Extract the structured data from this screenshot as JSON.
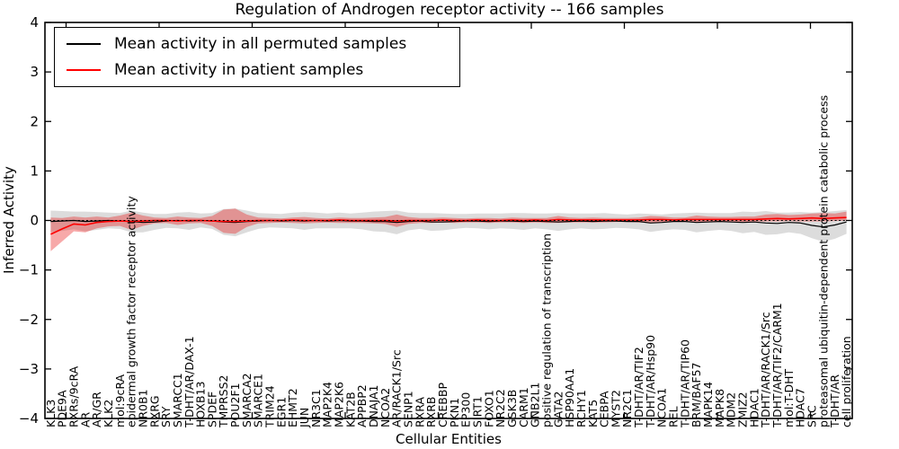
{
  "chart_data": {
    "type": "line",
    "title": "Regulation of Androgen receptor activity -- 166 samples",
    "xlabel": "Cellular Entities",
    "ylabel": "Inferred Activity",
    "ylim": [
      -4,
      4
    ],
    "yticks": [
      {
        "value": 4,
        "label": "4"
      },
      {
        "value": 3,
        "label": "3"
      },
      {
        "value": 2,
        "label": "2"
      },
      {
        "value": 1,
        "label": "1"
      },
      {
        "value": 0,
        "label": "0"
      },
      {
        "value": -1,
        "label": "−1"
      },
      {
        "value": -2,
        "label": "−2"
      },
      {
        "value": -3,
        "label": "−3"
      },
      {
        "value": -4,
        "label": "−4"
      }
    ],
    "grid": false,
    "legend_position": "upper left",
    "categories": [
      "KLK3",
      "PDE9A",
      "RXRs/9cRA",
      "AR",
      "AR/GR",
      "KLK2",
      "mol:9cRA",
      "epidermal growth factor receptor activity",
      "NR0B1",
      "RXRG",
      "SRY",
      "SMARCC1",
      "T-DHT/AR/DAX-1",
      "HOXB13",
      "SPDEF",
      "TMPRSS2",
      "POU2F1",
      "SMARCA2",
      "SMARCE1",
      "TRIM24",
      "EGR1",
      "EHMT2",
      "JUN",
      "NR3C1",
      "MAP2K4",
      "MAP2K6",
      "KAT2B",
      "APPBP2",
      "DNAJA1",
      "NCOA2",
      "AR/RACK1/Src",
      "SENP1",
      "RXRA",
      "RXRB",
      "CREBBP",
      "PKN1",
      "EP300",
      "SIRT1",
      "FOXO1",
      "NR2C2",
      "GSK3B",
      "CARM1",
      "GNB2L1",
      "positive regulation of transcription",
      "GATA2",
      "HSP90AA1",
      "RCHY1",
      "KAT5",
      "CEBPA",
      "MYST2",
      "NR2C1",
      "T-DHT/AR/TIF2",
      "T-DHT/AR/Hsp90",
      "NCOA1",
      "REL",
      "T-DHT/AR/TIP60",
      "BRM/BAF57",
      "MAPK14",
      "MAPK8",
      "MDM2",
      "ZMIZ2",
      "HDAC1",
      "T-DHT/AR/RACK1/Src",
      "T-DHT/AR/TIF2/CARM1",
      "mol:T-DHT",
      "HDAC7",
      "SRC",
      "proteasomal ubiquitin-dependent protein catabolic process",
      "T-DHT/AR",
      "cell proliferation"
    ],
    "series": [
      {
        "name": "Mean activity in all permuted samples",
        "color": "#000000",
        "line_style": "solid",
        "band_color": "rgba(128,128,128,0.28)",
        "values": [
          -0.02,
          -0.01,
          0,
          -0.02,
          -0.01,
          0,
          -0.01,
          -0.02,
          -0.04,
          -0.03,
          -0.01,
          0,
          -0.01,
          0,
          -0.01,
          -0.03,
          -0.04,
          -0.02,
          -0.01,
          0,
          -0.01,
          0,
          -0.01,
          0,
          -0.01,
          0,
          -0.01,
          -0.01,
          -0.02,
          -0.02,
          -0.04,
          -0.02,
          -0.01,
          -0.03,
          -0.03,
          -0.02,
          -0.01,
          -0.01,
          -0.02,
          -0.01,
          -0.01,
          -0.02,
          -0.01,
          -0.02,
          -0.03,
          -0.02,
          -0.01,
          -0.02,
          -0.01,
          -0.01,
          -0.02,
          -0.02,
          -0.05,
          -0.04,
          -0.02,
          -0.02,
          -0.04,
          -0.03,
          -0.02,
          -0.03,
          -0.04,
          -0.03,
          -0.05,
          -0.06,
          -0.04,
          -0.05,
          -0.1,
          -0.13,
          -0.09,
          -0.03
        ],
        "band_upper": [
          0.2,
          0.19,
          0.18,
          0.18,
          0.17,
          0.16,
          0.15,
          0.2,
          0.16,
          0.13,
          0.13,
          0.16,
          0.17,
          0.14,
          0.15,
          0.23,
          0.24,
          0.2,
          0.15,
          0.14,
          0.13,
          0.16,
          0.17,
          0.16,
          0.14,
          0.16,
          0.14,
          0.16,
          0.18,
          0.19,
          0.2,
          0.16,
          0.15,
          0.15,
          0.14,
          0.13,
          0.13,
          0.14,
          0.14,
          0.14,
          0.15,
          0.15,
          0.14,
          0.14,
          0.15,
          0.14,
          0.14,
          0.14,
          0.15,
          0.13,
          0.12,
          0.14,
          0.13,
          0.12,
          0.14,
          0.15,
          0.16,
          0.15,
          0.15,
          0.15,
          0.18,
          0.17,
          0.19,
          0.16,
          0.16,
          0.17,
          0.16,
          0.17,
          0.19,
          0.21
        ],
        "band_lower": [
          -0.24,
          -0.21,
          -0.18,
          -0.22,
          -0.19,
          -0.16,
          -0.17,
          -0.24,
          -0.24,
          -0.19,
          -0.15,
          -0.16,
          -0.19,
          -0.14,
          -0.17,
          -0.29,
          -0.32,
          -0.24,
          -0.17,
          -0.14,
          -0.15,
          -0.16,
          -0.19,
          -0.16,
          -0.16,
          -0.16,
          -0.16,
          -0.18,
          -0.22,
          -0.23,
          -0.28,
          -0.2,
          -0.17,
          -0.21,
          -0.2,
          -0.17,
          -0.15,
          -0.16,
          -0.18,
          -0.16,
          -0.17,
          -0.19,
          -0.16,
          -0.18,
          -0.21,
          -0.18,
          -0.16,
          -0.18,
          -0.17,
          -0.15,
          -0.16,
          -0.18,
          -0.23,
          -0.2,
          -0.18,
          -0.19,
          -0.24,
          -0.21,
          -0.19,
          -0.21,
          -0.26,
          -0.23,
          -0.29,
          -0.28,
          -0.24,
          -0.27,
          -0.36,
          -0.43,
          -0.37,
          -0.27
        ]
      },
      {
        "name": "Mean activity in patient samples",
        "color": "#ff0000",
        "line_style": "solid",
        "band_color": "rgba(235,30,30,0.38)",
        "values": [
          -0.28,
          -0.17,
          -0.07,
          -0.09,
          -0.04,
          -0.02,
          -0.01,
          -0.02,
          -0.01,
          0,
          0,
          -0.01,
          0,
          0,
          -0.01,
          -0.02,
          -0.02,
          -0.01,
          0,
          0,
          0,
          0.01,
          0,
          0,
          0,
          0.01,
          0,
          0,
          0,
          0,
          -0.01,
          0,
          0,
          0,
          0.01,
          0,
          0,
          0.01,
          0,
          0,
          0.01,
          0,
          0.01,
          0,
          0.02,
          0.01,
          0.01,
          0.01,
          0.01,
          0.01,
          0.01,
          0.01,
          0.02,
          0.02,
          0.01,
          0.02,
          0.02,
          0.02,
          0.02,
          0.02,
          0.02,
          0.02,
          0.03,
          0.04,
          0.03,
          0.04,
          0.05,
          0.04,
          0.05,
          0.06
        ],
        "band_upper": [
          0.06,
          0.05,
          0.08,
          0.06,
          0.08,
          0.06,
          0.1,
          0.16,
          0.1,
          0.06,
          0.05,
          0.08,
          0.06,
          0.05,
          0.09,
          0.22,
          0.24,
          0.12,
          0.06,
          0.05,
          0.04,
          0.06,
          0.07,
          0.05,
          0.04,
          0.06,
          0.05,
          0.05,
          0.06,
          0.07,
          0.12,
          0.07,
          0.05,
          0.05,
          0.06,
          0.05,
          0.04,
          0.05,
          0.05,
          0.04,
          0.06,
          0.05,
          0.05,
          0.05,
          0.09,
          0.06,
          0.05,
          0.06,
          0.05,
          0.05,
          0.05,
          0.06,
          0.09,
          0.08,
          0.06,
          0.06,
          0.1,
          0.08,
          0.07,
          0.07,
          0.08,
          0.08,
          0.12,
          0.13,
          0.11,
          0.12,
          0.14,
          0.15,
          0.14,
          0.18
        ],
        "band_lower": [
          -0.62,
          -0.42,
          -0.22,
          -0.24,
          -0.16,
          -0.12,
          -0.11,
          -0.19,
          -0.11,
          -0.06,
          -0.05,
          -0.09,
          -0.06,
          -0.05,
          -0.11,
          -0.25,
          -0.27,
          -0.13,
          -0.06,
          -0.05,
          -0.04,
          -0.05,
          -0.06,
          -0.05,
          -0.04,
          -0.05,
          -0.05,
          -0.05,
          -0.06,
          -0.07,
          -0.13,
          -0.07,
          -0.05,
          -0.05,
          -0.04,
          -0.05,
          -0.04,
          -0.04,
          -0.05,
          -0.04,
          -0.04,
          -0.05,
          -0.04,
          -0.05,
          -0.05,
          -0.04,
          -0.04,
          -0.04,
          -0.04,
          -0.03,
          -0.03,
          -0.04,
          -0.04,
          -0.03,
          -0.03,
          -0.03,
          -0.04,
          -0.03,
          -0.03,
          -0.02,
          -0.03,
          -0.02,
          -0.02,
          -0.02,
          -0.01,
          -0.02,
          -0.02,
          -0.02,
          -0.01,
          0
        ]
      }
    ],
    "reference_line": {
      "y": 0,
      "style": "dotted",
      "color": "#000000"
    }
  }
}
